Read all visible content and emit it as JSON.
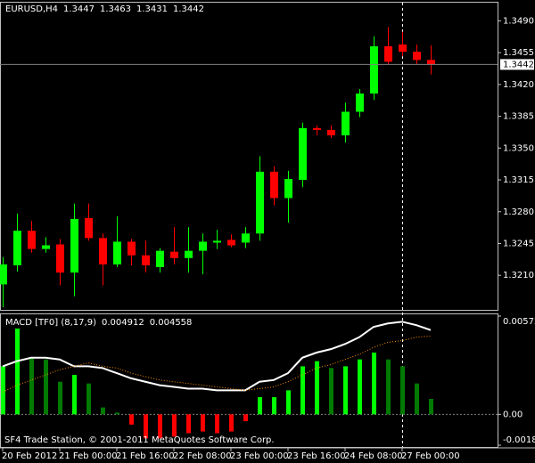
{
  "chart_data": [
    {
      "type": "candlestick",
      "title": "EURUSD,H4",
      "categories": [
        "20 Feb 2012",
        null,
        null,
        null,
        "21 Feb 00:00",
        null,
        null,
        null,
        "21 Feb 16:00",
        null,
        null,
        null,
        "22 Feb 08:00",
        null,
        null,
        null,
        "23 Feb 00:00",
        null,
        null,
        null,
        "23 Feb 16:00",
        null,
        null,
        null,
        "24 Feb 08:00",
        null,
        null,
        null,
        "27 Feb 00:00",
        null,
        null
      ],
      "open": [
        1.32,
        1.3221,
        1.3259,
        1.3239,
        1.3244,
        1.3213,
        1.3273,
        1.3251,
        1.3222,
        1.3247,
        1.3232,
        1.3219,
        1.3236,
        1.3229,
        1.3237,
        1.3246,
        1.3249,
        1.3246,
        1.3256,
        1.3324,
        1.3295,
        1.3315,
        1.3372,
        1.337,
        1.3364,
        1.339,
        1.341,
        1.3462,
        1.3464,
        1.3456,
        1.3447
      ],
      "high": [
        1.323,
        1.3278,
        1.327,
        1.3252,
        1.325,
        1.3289,
        1.3289,
        1.3256,
        1.3275,
        1.325,
        1.3248,
        1.324,
        1.3263,
        1.3263,
        1.3256,
        1.326,
        1.3255,
        1.3263,
        1.3341,
        1.333,
        1.3325,
        1.3378,
        1.3375,
        1.3375,
        1.34,
        1.3415,
        1.3473,
        1.3483,
        1.3478,
        1.3464,
        1.3463
      ],
      "low": [
        1.3175,
        1.3214,
        1.3235,
        1.3235,
        1.3199,
        1.3187,
        1.3248,
        1.3199,
        1.3219,
        1.3221,
        1.3213,
        1.3213,
        1.3222,
        1.3213,
        1.3211,
        1.3239,
        1.3241,
        1.324,
        1.3248,
        1.3287,
        1.3268,
        1.3307,
        1.3364,
        1.3361,
        1.3356,
        1.3384,
        1.3403,
        1.3442,
        1.3451,
        1.3442,
        1.3431
      ],
      "close": [
        1.3222,
        1.3259,
        1.3239,
        1.3243,
        1.3213,
        1.3272,
        1.3251,
        1.3222,
        1.3247,
        1.3232,
        1.3221,
        1.3237,
        1.3229,
        1.3237,
        1.3247,
        1.3248,
        1.3243,
        1.3256,
        1.3324,
        1.3295,
        1.3316,
        1.3372,
        1.337,
        1.3364,
        1.339,
        1.341,
        1.3462,
        1.3445,
        1.3456,
        1.3447,
        1.3442
      ],
      "up_color": "#00ff00",
      "down_color": "#ff0000",
      "ylim": [
        1.3172,
        1.351
      ],
      "yticks": [
        {
          "value": 1.349,
          "label": "1.3490"
        },
        1.3455,
        {
          "value": 1.342,
          "label": "1.3420"
        },
        1.3385,
        {
          "value": 1.335,
          "label": "1.3350"
        },
        1.3315,
        {
          "value": 1.328,
          "label": "1.3280"
        },
        1.3245,
        {
          "value": 1.321,
          "label": "1.3210"
        }
      ],
      "price_line": true
    },
    {
      "type": "macd",
      "title": "MACD [TF0] (8,17,9)",
      "histogram": {
        "values": [
          0.0028,
          0.005,
          0.0033,
          0.0032,
          0.0019,
          0.0023,
          0.0018,
          0.0004,
          0.0001,
          -0.0006,
          -0.0014,
          -0.0014,
          -0.0013,
          -0.0011,
          -0.001,
          -0.0011,
          -0.001,
          -0.0004,
          0.001,
          0.001,
          0.0014,
          0.0028,
          0.0031,
          0.0027,
          0.0028,
          0.0032,
          0.0036,
          0.0032,
          0.0028,
          0.0018,
          0.0009
        ],
        "rising_color": "#00ff00",
        "falling_color": "#007a00",
        "negative_color": "#ff0000"
      },
      "series": [
        {
          "color": "#ffffff",
          "style": "solid",
          "values": [
            0.0028,
            0.0031,
            0.0033,
            0.0033,
            0.0032,
            0.0028,
            0.0028,
            0.0027,
            0.0024,
            0.0021,
            0.0019,
            0.0017,
            0.0016,
            0.0015,
            0.0015,
            0.0014,
            0.0014,
            0.0014,
            0.0019,
            0.002,
            0.0024,
            0.0033,
            0.0036,
            0.0038,
            0.0041,
            0.0045,
            0.0051,
            0.0053,
            0.0054,
            0.0052,
            0.004912
          ]
        },
        {
          "color": "#ff8c00",
          "style": "dotted",
          "values": [
            0.0013,
            0.0017,
            0.002,
            0.0023,
            0.0026,
            0.0028,
            0.003,
            0.0028,
            0.0027,
            0.0024,
            0.0022,
            0.002,
            0.0019,
            0.0018,
            0.0017,
            0.0016,
            0.0015,
            0.0014,
            0.0015,
            0.0016,
            0.0019,
            0.0023,
            0.0027,
            0.0029,
            0.0032,
            0.0035,
            0.0039,
            0.0042,
            0.0043,
            0.0045,
            0.004558
          ]
        }
      ],
      "ylim": [
        -0.0018,
        0.005729
      ],
      "yticks": [
        0.005729,
        {
          "value": 0,
          "label": "0.00"
        },
        -0.0018
      ],
      "zero_line": true
    }
  ],
  "footer": "SF4 Trade Station, © 2001-2011 MetaQuotes Software Corp."
}
